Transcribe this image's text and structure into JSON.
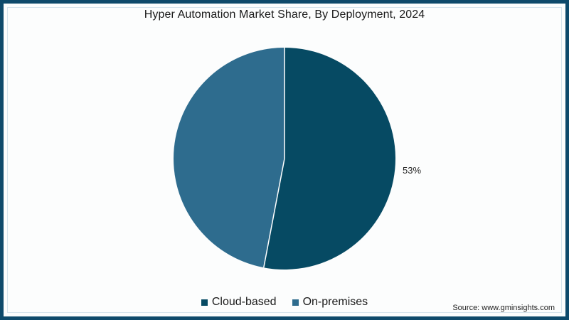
{
  "title": "Hyper Automation Market  Share, By Deployment, 2024",
  "source": "Source: www.gminsights.com",
  "colors": {
    "frame": "#0e4a6b",
    "cloud_based": "#064a63",
    "on_premises": "#2e6c8e"
  },
  "labels": {
    "cloud_based_pct": "53%"
  },
  "legend": [
    {
      "label": "Cloud-based",
      "color": "#064a63"
    },
    {
      "label": "On-premises",
      "color": "#2e6c8e"
    }
  ],
  "chart_data": {
    "type": "pie",
    "title": "Hyper Automation Market  Share, By Deployment, 2024",
    "categories": [
      "Cloud-based",
      "On-premises"
    ],
    "values": [
      53,
      47
    ],
    "units": "%",
    "data_labels": {
      "Cloud-based": "53%"
    },
    "legend_position": "bottom",
    "start_angle_deg": 0,
    "direction": "clockwise",
    "source": "Source: www.gminsights.com"
  }
}
